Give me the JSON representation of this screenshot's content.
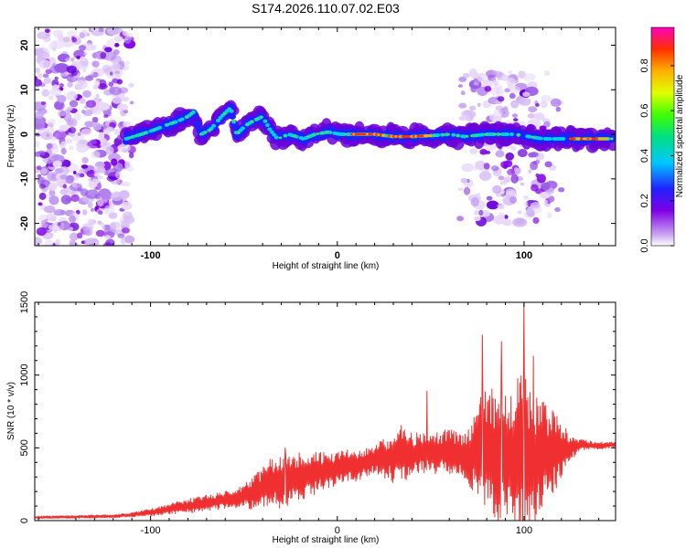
{
  "figure": {
    "title": "S174.2026.110.07.02.E03"
  },
  "chart_data": [
    {
      "type": "heatmap",
      "title": "",
      "xlabel": "Height of straight line (km)",
      "ylabel": "Frequency (Hz)",
      "xlim": [
        -162,
        149
      ],
      "ylim": [
        -25,
        24
      ],
      "x_ticks": [
        -100,
        0,
        100
      ],
      "x_tick_labels": [
        "-100",
        "0",
        "100"
      ],
      "y_ticks": [
        -20,
        -10,
        0,
        10,
        20
      ],
      "y_tick_labels": [
        "-20",
        "-10",
        "0",
        "10",
        "20"
      ],
      "colorbar": {
        "label": "Normalized spectral amplitude",
        "range": [
          0.0,
          0.97
        ],
        "ticks": [
          0.0,
          0.2,
          0.4,
          0.6,
          0.8
        ],
        "tick_labels": [
          "0.0",
          "0.2",
          "0.4",
          "0.6",
          "0.8"
        ],
        "colormap": [
          "#ffffff",
          "#c9a6f2",
          "#8000e6",
          "#2020ff",
          "#00c8ff",
          "#00e080",
          "#40ff00",
          "#e0ff00",
          "#ffb000",
          "#ff3000",
          "#ff00c0"
        ]
      },
      "ridge": {
        "description": "narrow-band signal near 0 Hz",
        "points": [
          {
            "x": -113,
            "y": -1
          },
          {
            "x": -105,
            "y": 0
          },
          {
            "x": -98,
            "y": 1
          },
          {
            "x": -92,
            "y": 2
          },
          {
            "x": -85,
            "y": 3
          },
          {
            "x": -80,
            "y": 4
          },
          {
            "x": -77,
            "y": 5
          },
          {
            "x": -73,
            "y": 0
          },
          {
            "x": -68,
            "y": 1
          },
          {
            "x": -62,
            "y": 4
          },
          {
            "x": -57,
            "y": 6
          },
          {
            "x": -54,
            "y": 0
          },
          {
            "x": -49,
            "y": 2
          },
          {
            "x": -45,
            "y": 3
          },
          {
            "x": -40,
            "y": 4
          },
          {
            "x": -36,
            "y": 1
          },
          {
            "x": -32,
            "y": -1
          },
          {
            "x": -26,
            "y": 0
          },
          {
            "x": -18,
            "y": -1
          },
          {
            "x": -12,
            "y": 0
          },
          {
            "x": -5,
            "y": 0.5
          },
          {
            "x": 2,
            "y": 0
          },
          {
            "x": 10,
            "y": 0
          },
          {
            "x": 20,
            "y": 0
          },
          {
            "x": 30,
            "y": -0.5
          },
          {
            "x": 40,
            "y": -0.5
          },
          {
            "x": 50,
            "y": -0.3
          },
          {
            "x": 60,
            "y": 0
          },
          {
            "x": 68,
            "y": -0.5
          },
          {
            "x": 80,
            "y": 0
          },
          {
            "x": 95,
            "y": 0
          },
          {
            "x": 110,
            "y": -1
          },
          {
            "x": 120,
            "y": -1
          },
          {
            "x": 130,
            "y": -1
          },
          {
            "x": 140,
            "y": -1
          },
          {
            "x": 148,
            "y": -1
          }
        ],
        "hot_segments": [
          {
            "x_start": 8,
            "x_end": 25,
            "amplitude": 0.9
          },
          {
            "x_start": 28,
            "x_end": 50,
            "amplitude": 0.85
          },
          {
            "x_start": 125,
            "x_end": 145,
            "amplitude": 0.95
          }
        ]
      },
      "noise_regions": [
        {
          "x_start": -162,
          "x_end": -110,
          "y_start": -25,
          "y_end": 24,
          "level": "low-to-medium"
        },
        {
          "x_start": 65,
          "x_end": 120,
          "y_start": -20,
          "y_end": 14,
          "level": "low-to-medium"
        }
      ]
    },
    {
      "type": "line",
      "title": "",
      "xlabel": "Height of straight line (km)",
      "ylabel": "SNR (10 * v/v)",
      "xlim": [
        -162,
        149
      ],
      "ylim": [
        0,
        1500
      ],
      "x_ticks": [
        -100,
        0,
        100
      ],
      "x_tick_labels": [
        "-100",
        "0",
        "100"
      ],
      "y_ticks": [
        0,
        500,
        1000,
        1500
      ],
      "y_tick_labels": [
        "0",
        "500",
        "1000",
        "1500"
      ],
      "series": [
        {
          "name": "SNR",
          "color": "#f03030",
          "envelope": {
            "x": [
              -162,
              -140,
              -120,
              -110,
              -100,
              -90,
              -80,
              -70,
              -60,
              -50,
              -42,
              -38,
              -30,
              -20,
              -10,
              0,
              10,
              20,
              30,
              35,
              40,
              45,
              50,
              55,
              60,
              65,
              70,
              75,
              78,
              82,
              86,
              90,
              95,
              100,
              105,
              110,
              115,
              120,
              125,
              130,
              140,
              149
            ],
            "mid": [
              22,
              25,
              30,
              40,
              55,
              80,
              100,
              120,
              140,
              170,
              200,
              260,
              260,
              300,
              330,
              360,
              380,
              420,
              440,
              460,
              460,
              470,
              470,
              470,
              480,
              460,
              450,
              460,
              500,
              480,
              420,
              440,
              430,
              440,
              430,
              450,
              470,
              480,
              500,
              520,
              515,
              520
            ],
            "amp": [
              8,
              10,
              12,
              15,
              25,
              35,
              50,
              55,
              60,
              80,
              140,
              170,
              180,
              170,
              140,
              120,
              110,
              100,
              180,
              220,
              140,
              150,
              160,
              150,
              160,
              140,
              200,
              320,
              420,
              440,
              460,
              450,
              520,
              600,
              450,
              380,
              300,
              200,
              90,
              40,
              25,
              20
            ]
          },
          "peaks": [
            {
              "x": 100,
              "y": 1500
            },
            {
              "x": 77.6,
              "y": 1275
            },
            {
              "x": 48,
              "y": 890
            },
            {
              "x": 88,
              "y": 1230
            },
            {
              "x": -28,
              "y": 500
            },
            {
              "x": 105,
              "y": 1130
            }
          ]
        }
      ]
    }
  ]
}
